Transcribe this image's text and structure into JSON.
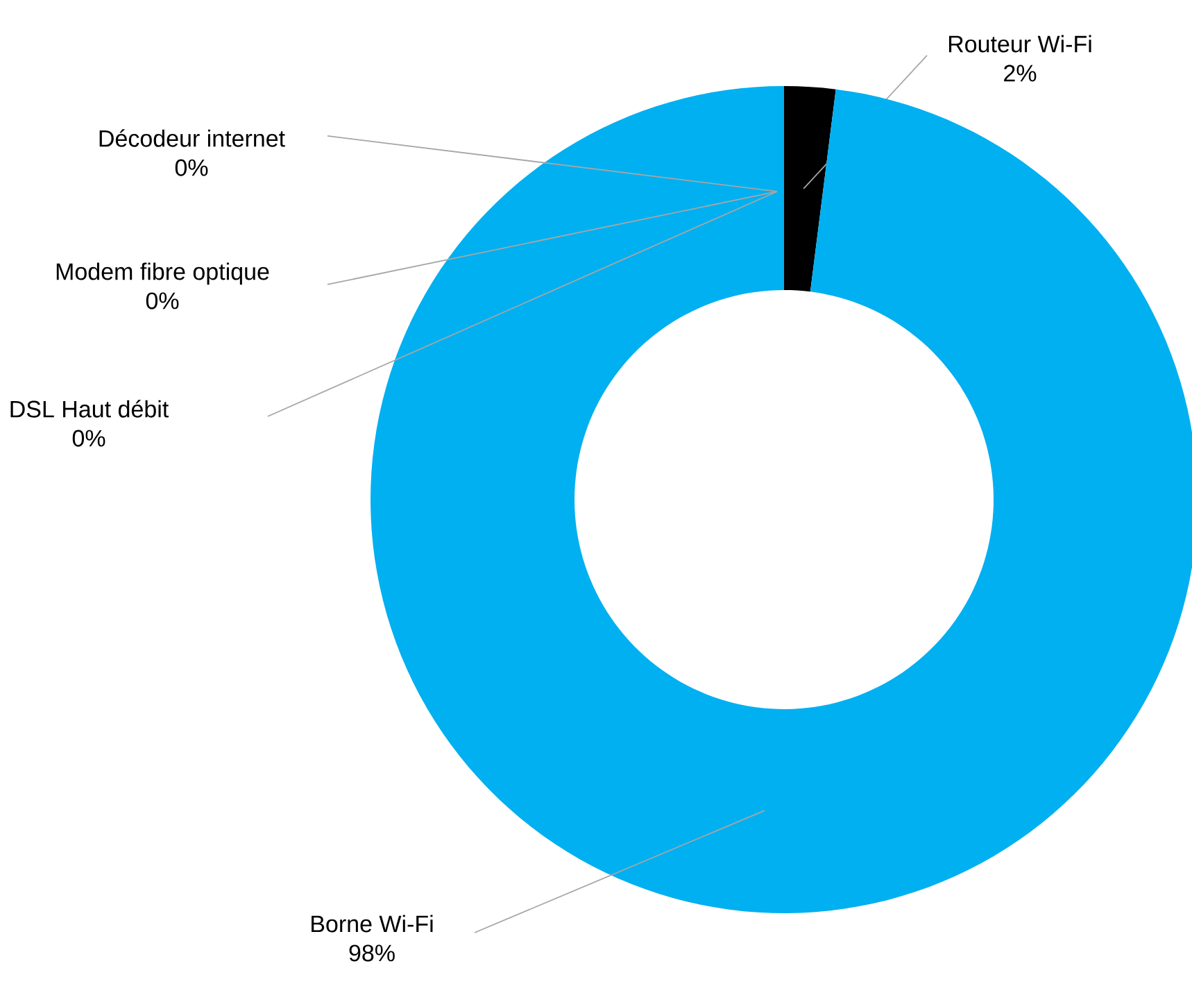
{
  "chart_data": {
    "type": "donut",
    "categories": [
      "Routeur Wi-Fi",
      "Borne Wi-Fi",
      "DSL Haut débit",
      "Modem fibre optique",
      "Décodeur internet"
    ],
    "values": [
      2,
      98,
      0,
      0,
      0
    ],
    "value_labels": [
      "2%",
      "98%",
      "0%",
      "0%",
      "0%"
    ],
    "colors": [
      "#000000",
      "#00b0f0",
      "#7f7f7f",
      "#a5a5a5",
      "#4472c4"
    ]
  }
}
